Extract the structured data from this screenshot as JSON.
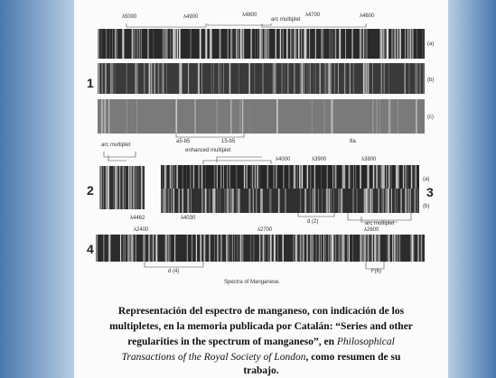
{
  "figure": {
    "panel_numbers": [
      "1",
      "2",
      "3",
      "4"
    ],
    "panel_1": {
      "top_labels": [
        "λ5000",
        "λ4900",
        "λ4800",
        "arc multiplet",
        "λ4700",
        "λ4600"
      ],
      "strip_labels": [
        "(a)",
        "(b)",
        "(c)"
      ],
      "bottom_labels": [
        "a5-b5",
        "15-b5",
        "enhanced multiplet",
        "8a"
      ]
    },
    "panel_2": {
      "top_label": "arc multiplet",
      "bottom_label": "λ4462"
    },
    "panel_3": {
      "top_labels": [
        "λ4000",
        "λ3900",
        "λ3800"
      ],
      "bottom_labels": [
        "λ4030",
        "d (2)",
        "arc multiplet"
      ],
      "strip_labels": [
        "(a)",
        "(b)"
      ]
    },
    "panel_4": {
      "top_labels": [
        "λ2400",
        "λ2700",
        "λ2600"
      ],
      "bottom_labels": [
        "d (4)",
        "F(6)"
      ]
    },
    "caption": "Spectra of Manganese."
  },
  "caption": {
    "line_1": "Representación del espectro de manganeso, con indicación de los",
    "line_2": "multipletes, en la memoria publicada por Catalán: “Series and other",
    "line_3": "regularities in the spectrum of manganeso”, en ",
    "line_3_italic": "Philosophical",
    "line_4_italic": "Transactions of the Royal Society of London",
    "line_4": ", como resumen de su",
    "line_5": "trabajo."
  }
}
